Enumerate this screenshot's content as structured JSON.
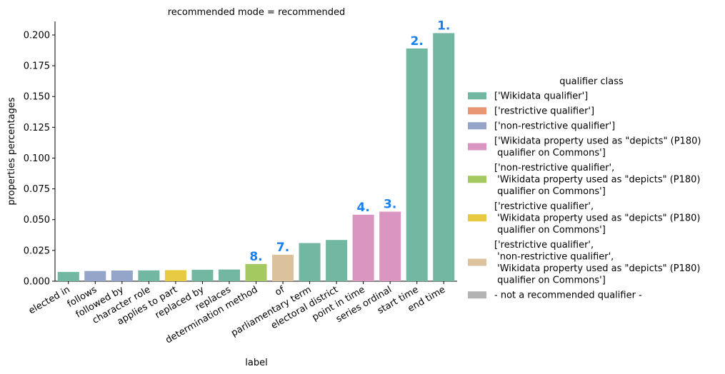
{
  "chart_data": {
    "type": "bar",
    "title": "recommended mode = recommended",
    "xlabel": "label",
    "ylabel": "properties percentages",
    "ylim": [
      0,
      0.211
    ],
    "yticks": [
      "0.000",
      "0.025",
      "0.050",
      "0.075",
      "0.100",
      "0.125",
      "0.150",
      "0.175",
      "0.200"
    ],
    "ytick_values": [
      0,
      0.025,
      0.05,
      0.075,
      0.1,
      0.125,
      0.15,
      0.175,
      0.2
    ],
    "grid": false,
    "legend_position": "right",
    "legend_title": "qualifier class",
    "legend": [
      {
        "lines": [
          "['Wikidata qualifier']"
        ],
        "color": "#72b7a1"
      },
      {
        "lines": [
          "['restrictive qualifier']"
        ],
        "color": "#e99675"
      },
      {
        "lines": [
          "['non-restrictive qualifier']"
        ],
        "color": "#94a5c9"
      },
      {
        "lines": [
          "['Wikidata property used as \"depicts\" (P180)",
          " qualifier on Commons']"
        ],
        "color": "#db95c1"
      },
      {
        "lines": [
          "['non-restrictive qualifier',",
          " 'Wikidata property used as \"depicts\" (P180)",
          " qualifier on Commons']"
        ],
        "color": "#a5c961"
      },
      {
        "lines": [
          "['restrictive qualifier',",
          " 'Wikidata property used as \"depicts\" (P180)",
          " qualifier on Commons']"
        ],
        "color": "#e8ca42"
      },
      {
        "lines": [
          "['restrictive qualifier',",
          " 'non-restrictive qualifier',",
          " 'Wikidata property used as \"depicts\" (P180)",
          " qualifier on Commons']"
        ],
        "color": "#dbc29c"
      },
      {
        "lines": [
          "- not a recommended qualifier -"
        ],
        "color": "#b3b3b3"
      }
    ],
    "bars": [
      {
        "label": "elected in",
        "value": 0.0075,
        "color": "#72b7a1",
        "rank": ""
      },
      {
        "label": "follows",
        "value": 0.0083,
        "color": "#94a5c9",
        "rank": ""
      },
      {
        "label": "followed by",
        "value": 0.0087,
        "color": "#94a5c9",
        "rank": ""
      },
      {
        "label": "character role",
        "value": 0.0088,
        "color": "#72b7a1",
        "rank": ""
      },
      {
        "label": "applies to part",
        "value": 0.009,
        "color": "#e8ca42",
        "rank": ""
      },
      {
        "label": "replaced by",
        "value": 0.0093,
        "color": "#72b7a1",
        "rank": ""
      },
      {
        "label": "replaces",
        "value": 0.0095,
        "color": "#72b7a1",
        "rank": ""
      },
      {
        "label": "determination method",
        "value": 0.014,
        "color": "#a5c961",
        "rank": "8."
      },
      {
        "label": "of",
        "value": 0.0215,
        "color": "#dbc29c",
        "rank": "7."
      },
      {
        "label": "parliamentary term",
        "value": 0.031,
        "color": "#72b7a1",
        "rank": ""
      },
      {
        "label": "electoral district",
        "value": 0.0335,
        "color": "#72b7a1",
        "rank": ""
      },
      {
        "label": "point in time",
        "value": 0.054,
        "color": "#db95c1",
        "rank": "4."
      },
      {
        "label": "series ordinal",
        "value": 0.0565,
        "color": "#db95c1",
        "rank": "3."
      },
      {
        "label": "start time",
        "value": 0.189,
        "color": "#72b7a1",
        "rank": "2."
      },
      {
        "label": "end time",
        "value": 0.2015,
        "color": "#72b7a1",
        "rank": "1."
      }
    ],
    "rank_color": "#1a80ed"
  }
}
